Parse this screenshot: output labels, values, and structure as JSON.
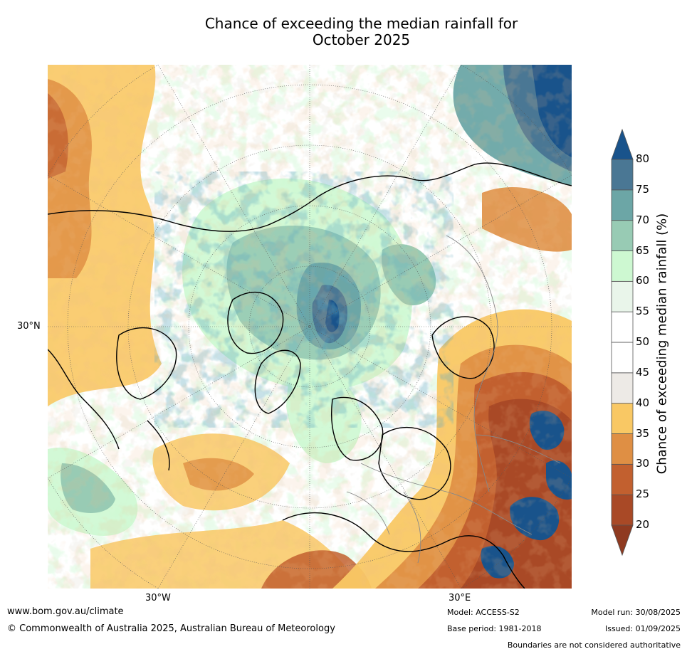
{
  "title_line1": "Chance of exceeding the median rainfall for",
  "title_line2": "October 2025",
  "axis_labels": {
    "lat_30n": "30°N",
    "lon_30w": "30°W",
    "lon_30e": "30°E"
  },
  "colorbar": {
    "label": "Chance of exceeding median rainfall (%)",
    "ticks": [
      "20",
      "25",
      "30",
      "35",
      "40",
      "45",
      "50",
      "55",
      "60",
      "65",
      "70",
      "75",
      "80"
    ],
    "colors": [
      "#a94926",
      "#c2602f",
      "#df8f44",
      "#f9c864",
      "#edeae6",
      "#ffffff",
      "#ffffff",
      "#e9f5ea",
      "#cdf8d1",
      "#98cbb4",
      "#6ca6a6",
      "#4a7794",
      "#19538b"
    ],
    "under_color": "#8f3a20",
    "over_color": "#19538b"
  },
  "footer": {
    "website": "www.bom.gov.au/climate",
    "copyright": "© Commonwealth of Australia 2025, Australian Bureau of Meteorology",
    "model": "Model: ACCESS-S2",
    "base_period": "Base period: 1981-2018",
    "model_run": "Model run: 30/08/2025",
    "issued": "Issued: 01/09/2025",
    "disclaimer": "Boundaries are not considered authoritative"
  }
}
